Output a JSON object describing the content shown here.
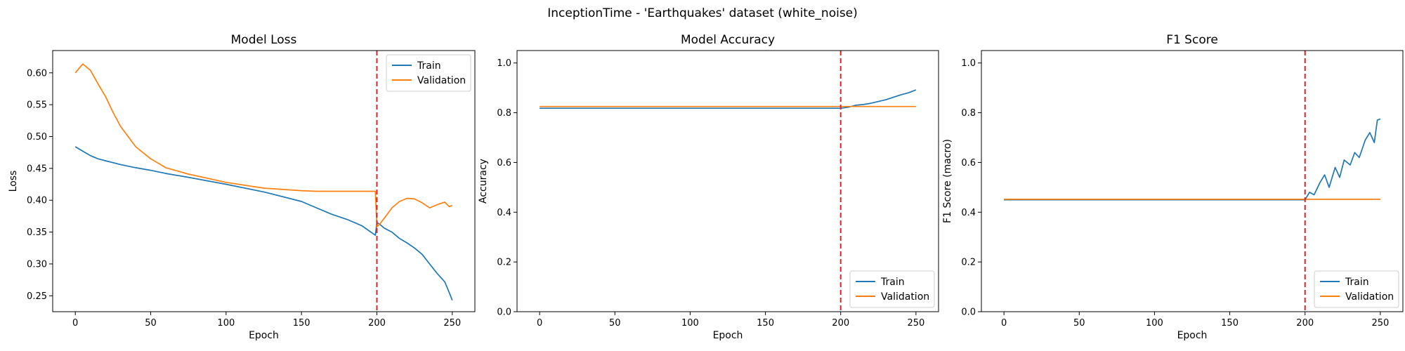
{
  "figure_title": "InceptionTime - 'Earthquakes' dataset (white_noise)",
  "colors": {
    "train": "#1f77b4",
    "validation": "#ff7f0e",
    "marker": "#d62728"
  },
  "chart_data": [
    {
      "type": "line",
      "title": "Model Loss",
      "xlabel": "Epoch",
      "ylabel": "Loss",
      "xlim": [
        -15,
        265
      ],
      "ylim": [
        0.225,
        0.635
      ],
      "xticks": [
        0,
        50,
        100,
        150,
        200,
        250
      ],
      "yticks": [
        0.25,
        0.3,
        0.35,
        0.4,
        0.45,
        0.5,
        0.55,
        0.6
      ],
      "ytick_decimals": 2,
      "vline_x": 200,
      "legend_position": "upper right",
      "x": [
        0,
        5,
        10,
        15,
        20,
        25,
        30,
        40,
        50,
        60,
        75,
        100,
        125,
        150,
        160,
        170,
        180,
        190,
        199,
        200,
        202,
        205,
        210,
        215,
        220,
        225,
        230,
        235,
        240,
        245,
        248,
        250
      ],
      "series": [
        {
          "name": "Train",
          "values": [
            0.484,
            0.477,
            0.47,
            0.465,
            0.462,
            0.459,
            0.456,
            0.451,
            0.447,
            0.442,
            0.436,
            0.425,
            0.413,
            0.398,
            0.388,
            0.378,
            0.37,
            0.36,
            0.345,
            0.365,
            0.362,
            0.356,
            0.35,
            0.34,
            0.333,
            0.325,
            0.315,
            0.3,
            0.285,
            0.272,
            0.255,
            0.243
          ]
        },
        {
          "name": "Validation",
          "values": [
            0.6,
            0.614,
            0.604,
            0.583,
            0.563,
            0.538,
            0.516,
            0.484,
            0.465,
            0.451,
            0.441,
            0.428,
            0.419,
            0.415,
            0.414,
            0.414,
            0.414,
            0.414,
            0.414,
            0.358,
            0.363,
            0.372,
            0.388,
            0.398,
            0.403,
            0.402,
            0.396,
            0.388,
            0.393,
            0.397,
            0.39,
            0.392
          ]
        }
      ]
    },
    {
      "type": "line",
      "title": "Model Accuracy",
      "xlabel": "Epoch",
      "ylabel": "Accuracy",
      "xlim": [
        -15,
        265
      ],
      "ylim": [
        0.0,
        1.05
      ],
      "xticks": [
        0,
        50,
        100,
        150,
        200,
        250
      ],
      "yticks": [
        0.0,
        0.2,
        0.4,
        0.6,
        0.8,
        1.0
      ],
      "ytick_decimals": 1,
      "vline_x": 200,
      "legend_position": "lower right",
      "x": [
        0,
        50,
        100,
        150,
        200,
        205,
        210,
        215,
        220,
        225,
        230,
        235,
        240,
        245,
        248,
        250
      ],
      "series": [
        {
          "name": "Train",
          "values": [
            0.818,
            0.818,
            0.818,
            0.818,
            0.818,
            0.822,
            0.83,
            0.833,
            0.838,
            0.845,
            0.852,
            0.862,
            0.872,
            0.88,
            0.887,
            0.892
          ]
        },
        {
          "name": "Validation",
          "values": [
            0.825,
            0.825,
            0.825,
            0.825,
            0.825,
            0.825,
            0.825,
            0.825,
            0.825,
            0.825,
            0.825,
            0.825,
            0.825,
            0.825,
            0.825,
            0.825
          ]
        }
      ]
    },
    {
      "type": "line",
      "title": "F1 Score",
      "xlabel": "Epoch",
      "ylabel": "F1 Score (macro)",
      "xlim": [
        -15,
        265
      ],
      "ylim": [
        0.0,
        1.05
      ],
      "xticks": [
        0,
        50,
        100,
        150,
        200,
        250
      ],
      "yticks": [
        0.0,
        0.2,
        0.4,
        0.6,
        0.8,
        1.0
      ],
      "ytick_decimals": 1,
      "vline_x": 200,
      "legend_position": "lower right",
      "x": [
        0,
        50,
        100,
        150,
        200,
        203,
        206,
        210,
        213,
        216,
        220,
        223,
        226,
        230,
        233,
        236,
        240,
        243,
        246,
        248,
        250
      ],
      "series": [
        {
          "name": "Train",
          "values": [
            0.45,
            0.45,
            0.45,
            0.45,
            0.45,
            0.48,
            0.47,
            0.52,
            0.55,
            0.5,
            0.58,
            0.54,
            0.61,
            0.59,
            0.64,
            0.62,
            0.69,
            0.72,
            0.68,
            0.77,
            0.775
          ]
        },
        {
          "name": "Validation",
          "values": [
            0.452,
            0.452,
            0.452,
            0.452,
            0.452,
            0.452,
            0.452,
            0.452,
            0.452,
            0.452,
            0.452,
            0.452,
            0.452,
            0.452,
            0.452,
            0.452,
            0.452,
            0.452,
            0.452,
            0.452,
            0.452
          ]
        }
      ]
    }
  ]
}
